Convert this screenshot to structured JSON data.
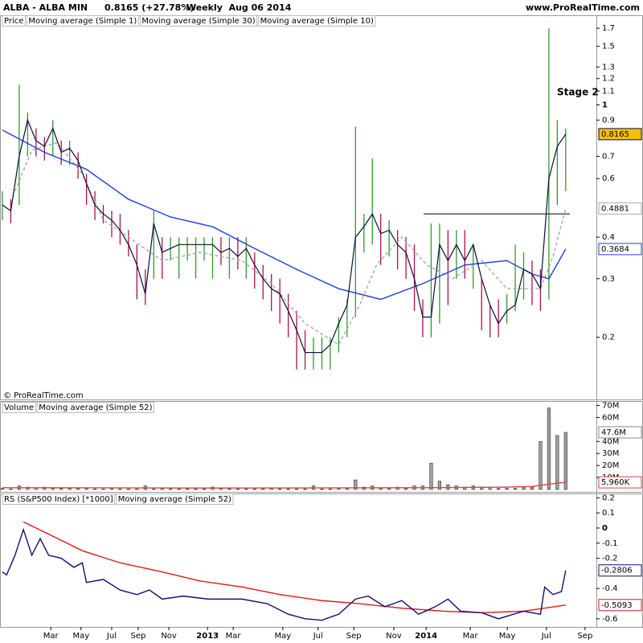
{
  "header": {
    "symbol": "ALBA - ALBA MIN",
    "quote": "0.8165 (+27.78%)",
    "period": "Weekly  Aug 06 2014",
    "site": "www.ProRealTime.com"
  },
  "copyright": "© ProRealTime.com",
  "chart_data": [
    {
      "type": "ohlc",
      "log_scale": true,
      "ylim": [
        0.13,
        1.73
      ],
      "yticks": [
        1.7,
        1.5,
        1.3,
        1.2,
        1.1,
        1,
        0.9,
        0.7,
        0.6,
        0.4,
        0.3,
        0.2
      ],
      "up_color": "#2e9a2e",
      "down_color": "#b01040",
      "bars": {
        "name": "Price",
        "x": [
          0,
          2,
          4,
          6,
          8,
          10,
          12,
          14,
          16,
          18,
          20,
          22,
          24,
          26,
          28,
          30,
          32,
          34,
          36,
          38,
          40,
          42,
          44,
          46,
          48,
          50,
          52,
          54,
          56,
          58,
          60,
          62,
          64,
          66,
          68,
          70,
          72,
          74,
          76,
          78,
          80,
          82,
          84,
          86,
          88,
          90,
          92,
          94,
          96,
          98,
          100,
          102,
          104,
          106,
          108,
          110,
          112,
          114,
          116,
          118,
          120,
          122,
          124,
          126,
          128,
          130,
          132,
          134
        ],
        "high": [
          0.55,
          0.52,
          1.15,
          0.95,
          0.85,
          0.8,
          0.9,
          0.78,
          0.78,
          0.72,
          0.62,
          0.55,
          0.5,
          0.48,
          0.47,
          0.42,
          0.38,
          0.32,
          0.48,
          0.4,
          0.4,
          0.4,
          0.4,
          0.4,
          0.4,
          0.4,
          0.4,
          0.4,
          0.4,
          0.4,
          0.36,
          0.33,
          0.31,
          0.3,
          0.27,
          0.24,
          0.21,
          0.2,
          0.2,
          0.2,
          0.23,
          0.26,
          0.86,
          0.47,
          0.69,
          0.47,
          0.45,
          0.42,
          0.4,
          0.38,
          0.26,
          0.44,
          0.44,
          0.42,
          0.42,
          0.42,
          0.38,
          0.3,
          0.25,
          0.26,
          0.27,
          0.38,
          0.36,
          0.34,
          0.32,
          1.7,
          0.9,
          0.85
        ],
        "low": [
          0.45,
          0.44,
          0.5,
          0.7,
          0.7,
          0.68,
          0.7,
          0.66,
          0.66,
          0.6,
          0.5,
          0.45,
          0.44,
          0.4,
          0.38,
          0.35,
          0.26,
          0.25,
          0.3,
          0.3,
          0.34,
          0.3,
          0.34,
          0.3,
          0.34,
          0.3,
          0.33,
          0.3,
          0.32,
          0.3,
          0.28,
          0.26,
          0.24,
          0.22,
          0.2,
          0.16,
          0.16,
          0.16,
          0.16,
          0.16,
          0.18,
          0.2,
          0.23,
          0.36,
          0.38,
          0.33,
          0.35,
          0.32,
          0.3,
          0.24,
          0.2,
          0.2,
          0.22,
          0.25,
          0.3,
          0.3,
          0.28,
          0.21,
          0.2,
          0.2,
          0.22,
          0.24,
          0.26,
          0.25,
          0.24,
          0.26,
          0.5,
          0.55
        ]
      },
      "series": [
        {
          "name": "Moving average (Simple 1)",
          "color": "#0a0a40",
          "box_fill": "#f5c000",
          "values": [
            0.5,
            0.48,
            0.7,
            0.9,
            0.78,
            0.75,
            0.85,
            0.72,
            0.74,
            0.68,
            0.58,
            0.5,
            0.47,
            0.45,
            0.42,
            0.38,
            0.33,
            0.27,
            0.44,
            0.36,
            0.37,
            0.38,
            0.38,
            0.38,
            0.38,
            0.38,
            0.36,
            0.37,
            0.35,
            0.37,
            0.33,
            0.3,
            0.28,
            0.27,
            0.24,
            0.21,
            0.18,
            0.18,
            0.18,
            0.19,
            0.22,
            0.25,
            0.4,
            0.43,
            0.47,
            0.41,
            0.42,
            0.38,
            0.36,
            0.3,
            0.23,
            0.23,
            0.38,
            0.34,
            0.38,
            0.34,
            0.38,
            0.3,
            0.25,
            0.22,
            0.24,
            0.25,
            0.32,
            0.31,
            0.28,
            0.6,
            0.75,
            0.8165
          ]
        },
        {
          "name": "Moving average (Simple 30)",
          "color": "#1f3fdd",
          "x": [
            0,
            10,
            20,
            30,
            40,
            50,
            60,
            70,
            80,
            90,
            100,
            110,
            120,
            126,
            130,
            134
          ],
          "values": [
            0.84,
            0.72,
            0.64,
            0.52,
            0.46,
            0.43,
            0.37,
            0.32,
            0.28,
            0.26,
            0.29,
            0.33,
            0.34,
            0.31,
            0.3,
            0.3684
          ]
        },
        {
          "name": "Moving average (Simple 10)",
          "color": "#a8a8a8",
          "dashed": true,
          "x": [
            3,
            7,
            13,
            19,
            24,
            30,
            38,
            47,
            57,
            64,
            72,
            80,
            85,
            89,
            95,
            101,
            107,
            114,
            120,
            128,
            131,
            134
          ],
          "values": [
            0.55,
            0.73,
            0.77,
            0.62,
            0.45,
            0.4,
            0.34,
            0.36,
            0.34,
            0.29,
            0.22,
            0.19,
            0.25,
            0.33,
            0.4,
            0.33,
            0.3,
            0.34,
            0.28,
            0.28,
            0.35,
            0.4881
          ]
        }
      ],
      "annotation": "Stage 2",
      "hline": {
        "y": 0.47,
        "x": [
          100.2,
          135
        ]
      }
    },
    {
      "type": "bar",
      "name": "Volume",
      "color": "#a0a0a0",
      "ylim": [
        -2000000,
        73000000
      ],
      "yticks": [
        {
          "value": 70000000,
          "label": "70M"
        },
        {
          "value": 60000000,
          "label": "60M"
        },
        {
          "value": 40000000,
          "label": "40M"
        },
        {
          "value": 30000000,
          "label": "30M"
        },
        {
          "value": 20000000,
          "label": "20M"
        },
        {
          "value": 10000000,
          "label": "10M"
        }
      ],
      "values": [
        1000000,
        500000,
        3000000,
        2000000,
        1500000,
        2000000,
        1000000,
        1000000,
        1000000,
        1000000,
        1000000,
        500000,
        500000,
        1000000,
        500000,
        500000,
        500000,
        3000000,
        500000,
        1000000,
        500000,
        500000,
        500000,
        500000,
        500000,
        2000000,
        1000000,
        500000,
        500000,
        500000,
        500000,
        500000,
        1000000,
        500000,
        500000,
        500000,
        500000,
        3000000,
        500000,
        500000,
        1000000,
        1000000,
        8000000,
        2000000,
        3000000,
        1000000,
        1000000,
        2000000,
        1000000,
        3000000,
        3000000,
        22000000,
        7000000,
        4000000,
        3000000,
        2000000,
        3000000,
        2000000,
        2000000,
        1000000,
        1000000,
        1000000,
        2000000,
        2000000,
        40000000,
        68000000,
        45000000,
        47600000
      ],
      "last_value_label": "47.6M",
      "series": [
        {
          "name": "Moving average (Simple 52)",
          "color": "#e04040",
          "x": [
            0,
            50,
            100,
            120,
            126,
            130,
            134
          ],
          "values": [
            1500000,
            1200000,
            1500000,
            2000000,
            2500000,
            4500000,
            5960000
          ],
          "last_value_label": "5,960K"
        }
      ]
    },
    {
      "type": "line",
      "xlim": [
        -0.57,
        141.3
      ],
      "xticks": [
        {
          "value": 11.5,
          "label": "Mar"
        },
        {
          "value": 18.7,
          "label": "May"
        },
        {
          "value": 26,
          "label": "Jul"
        },
        {
          "value": 32.3,
          "label": "Sep"
        },
        {
          "value": 39.6,
          "label": "Nov"
        },
        {
          "value": 48.8,
          "label": "2013"
        },
        {
          "value": 54.9,
          "label": "Mar"
        },
        {
          "value": 66.7,
          "label": "May"
        },
        {
          "value": 75.1,
          "label": "Jul"
        },
        {
          "value": 83.6,
          "label": "Sep"
        },
        {
          "value": 93.1,
          "label": "Nov"
        },
        {
          "value": 100.8,
          "label": "2014"
        },
        {
          "value": 111.3,
          "label": "Mar"
        },
        {
          "value": 120.1,
          "label": "May"
        },
        {
          "value": 129.4,
          "label": "Jul"
        },
        {
          "value": 138.6,
          "label": "Sep"
        }
      ],
      "ylim": [
        -0.654,
        0.223
      ],
      "yticks": [
        0.2,
        0.1,
        0,
        -0.1,
        -0.2,
        -0.4,
        -0.6
      ],
      "series": [
        {
          "name": "RS (S&P500 Index) [*1000]",
          "color": "#101070",
          "x": [
            0,
            1,
            3,
            5,
            7,
            9,
            11,
            14,
            17,
            19,
            20,
            24,
            28,
            32,
            35,
            38,
            43,
            49,
            57,
            63,
            68,
            72,
            76,
            80,
            84,
            87,
            91,
            95,
            99,
            103,
            106,
            109,
            114,
            118,
            124,
            128,
            129,
            131,
            133,
            134
          ],
          "values": [
            -0.29,
            -0.31,
            -0.18,
            -0.01,
            -0.18,
            -0.07,
            -0.18,
            -0.2,
            -0.26,
            -0.23,
            -0.36,
            -0.34,
            -0.41,
            -0.44,
            -0.41,
            -0.47,
            -0.45,
            -0.47,
            -0.47,
            -0.5,
            -0.57,
            -0.6,
            -0.61,
            -0.57,
            -0.47,
            -0.45,
            -0.52,
            -0.48,
            -0.57,
            -0.52,
            -0.47,
            -0.55,
            -0.56,
            -0.6,
            -0.55,
            -0.57,
            -0.39,
            -0.44,
            -0.42,
            -0.2806
          ]
        },
        {
          "name": "Moving average (Simple 52)",
          "color": "#e01818",
          "x": [
            5,
            11,
            19,
            28,
            38,
            47,
            57,
            66,
            76,
            85,
            95,
            105,
            114,
            124,
            134
          ],
          "values": [
            0.04,
            -0.04,
            -0.15,
            -0.23,
            -0.29,
            -0.35,
            -0.39,
            -0.44,
            -0.48,
            -0.5,
            -0.53,
            -0.55,
            -0.56,
            -0.55,
            -0.5093
          ]
        }
      ]
    }
  ]
}
